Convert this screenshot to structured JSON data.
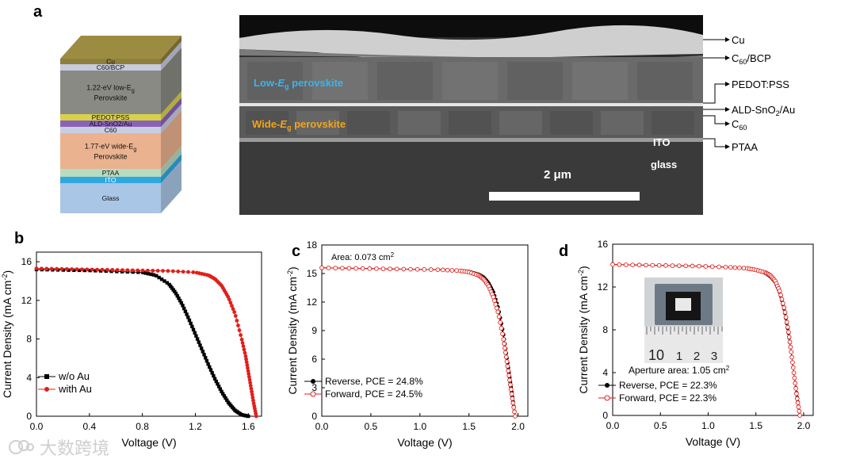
{
  "panels": {
    "a": "a",
    "b": "b",
    "c": "c",
    "d": "d"
  },
  "device_stack": {
    "layers": [
      {
        "label": "Cu",
        "color": "#8e7f3c"
      },
      {
        "label": "C60/BCP",
        "color": "#c7cbe0"
      },
      {
        "label": "1.22-eV low-Eg Perovskite",
        "line1": "1.22-eV low-E",
        "line1_sub": "g",
        "line2": "Perovskite",
        "color": "#8a8a84"
      },
      {
        "label": "PEDOT:PSS",
        "color": "#d8d24a"
      },
      {
        "label": "ALD-SnO2/Au",
        "color": "#8a63b8"
      },
      {
        "label": "C60",
        "color": "#c9cde2"
      },
      {
        "label": "1.77-eV wide-Eg Perovskite",
        "line1": "1.77-eV wide-E",
        "line1_sub": "g",
        "line2": "Perovskite",
        "color": "#eab28f"
      },
      {
        "label": "PTAA",
        "color": "#b7dcc0"
      },
      {
        "label": "ITO",
        "color": "#2fa8e0"
      },
      {
        "label": "Glass",
        "color": "#a9c6e6"
      }
    ]
  },
  "sem": {
    "low_label": "Low-Eg perovskite",
    "wide_label": "Wide-Eg perovskite",
    "ito_label": "ITO",
    "glass_label": "glass",
    "scale_label": "2 μm",
    "callouts": [
      "Cu",
      "C60/BCP",
      "PEDOT:PSS",
      "ALD-SnO2/Au",
      "C60",
      "PTAA"
    ]
  },
  "chart_data": [
    {
      "type": "line",
      "panel": "b",
      "xlabel": "Voltage (V)",
      "ylabel": "Current Density (mA cm-2)",
      "xlim": [
        0,
        1.7
      ],
      "ylim": [
        0,
        17
      ],
      "xticks": [
        "0.0",
        "0.4",
        "0.8",
        "1.2",
        "1.6"
      ],
      "yticks": [
        "0",
        "4",
        "8",
        "12",
        "16"
      ],
      "legend_position": "bottom-left",
      "series": [
        {
          "name": "w/o  Au",
          "color": "#000000",
          "marker": "square",
          "x": [
            0.0,
            0.2,
            0.4,
            0.6,
            0.8,
            0.9,
            1.0,
            1.05,
            1.1,
            1.15,
            1.2,
            1.25,
            1.3,
            1.35,
            1.4,
            1.45,
            1.5,
            1.55,
            1.6
          ],
          "y": [
            15.2,
            15.15,
            15.1,
            15.0,
            14.9,
            14.6,
            13.7,
            12.8,
            11.6,
            10.1,
            8.5,
            6.9,
            5.3,
            3.8,
            2.5,
            1.4,
            0.6,
            0.15,
            0.0
          ]
        },
        {
          "name": "with Au",
          "color": "#e0201b",
          "marker": "circle",
          "x": [
            0.0,
            0.2,
            0.4,
            0.6,
            0.8,
            1.0,
            1.2,
            1.3,
            1.35,
            1.4,
            1.45,
            1.5,
            1.55,
            1.58,
            1.6,
            1.62,
            1.64,
            1.66
          ],
          "y": [
            15.3,
            15.25,
            15.2,
            15.15,
            15.1,
            15.05,
            14.9,
            14.6,
            14.2,
            13.5,
            12.3,
            10.6,
            8.0,
            6.2,
            4.6,
            3.0,
            1.4,
            0.0
          ]
        }
      ]
    },
    {
      "type": "line",
      "panel": "c",
      "annotation": "Area: 0.073 cm2",
      "xlabel": "Voltage (V)",
      "ylabel": "Current Density (mA cm-2)",
      "xlim": [
        0,
        2.1
      ],
      "ylim": [
        0,
        18
      ],
      "xticks": [
        "0.0",
        "0.5",
        "1.0",
        "1.5",
        "2.0"
      ],
      "yticks": [
        "0",
        "3",
        "6",
        "9",
        "12",
        "15",
        "18"
      ],
      "legend_position": "bottom-left",
      "series": [
        {
          "name": "Reverse, PCE = 24.8%",
          "color": "#000000",
          "marker": "filled-circle",
          "x": [
            0.0,
            0.3,
            0.6,
            0.9,
            1.2,
            1.4,
            1.5,
            1.6,
            1.65,
            1.7,
            1.75,
            1.8,
            1.85,
            1.88,
            1.91,
            1.94,
            1.97
          ],
          "y": [
            15.6,
            15.55,
            15.5,
            15.45,
            15.4,
            15.3,
            15.2,
            14.9,
            14.6,
            14.0,
            13.0,
            11.3,
            8.7,
            6.6,
            4.4,
            2.2,
            0.0
          ]
        },
        {
          "name": "Forward, PCE = 24.5%",
          "color": "#e0201b",
          "marker": "open-circle",
          "x": [
            0.0,
            0.3,
            0.6,
            0.9,
            1.2,
            1.4,
            1.5,
            1.6,
            1.65,
            1.7,
            1.75,
            1.8,
            1.85,
            1.88,
            1.91,
            1.94,
            1.97
          ],
          "y": [
            15.6,
            15.55,
            15.5,
            15.45,
            15.4,
            15.3,
            15.15,
            14.8,
            14.4,
            13.7,
            12.5,
            10.8,
            8.2,
            6.2,
            4.1,
            2.0,
            0.0
          ]
        }
      ]
    },
    {
      "type": "line",
      "panel": "d",
      "annotation": "Aperture area: 1.05 cm2",
      "inset_ruler_labels": [
        "10",
        "1",
        "2",
        "3"
      ],
      "xlabel": "Voltage (V)",
      "ylabel": "Current Density (mA cm-2)",
      "xlim": [
        0,
        2.1
      ],
      "ylim": [
        0,
        16
      ],
      "xticks": [
        "0.0",
        "0.5",
        "1.0",
        "1.5",
        "2.0"
      ],
      "yticks": [
        "0",
        "4",
        "8",
        "12",
        "16"
      ],
      "legend_position": "bottom-left",
      "series": [
        {
          "name": "Reverse, PCE = 22.3%",
          "color": "#000000",
          "marker": "filled-circle",
          "x": [
            0.0,
            0.3,
            0.6,
            0.9,
            1.2,
            1.4,
            1.5,
            1.6,
            1.65,
            1.7,
            1.75,
            1.8,
            1.84,
            1.87,
            1.9,
            1.93,
            1.96
          ],
          "y": [
            14.1,
            14.05,
            14.0,
            13.95,
            13.85,
            13.75,
            13.6,
            13.3,
            13.0,
            12.5,
            11.5,
            9.8,
            7.8,
            5.9,
            3.8,
            1.8,
            0.0
          ]
        },
        {
          "name": "Forward, PCE = 22.3%",
          "color": "#e0201b",
          "marker": "open-circle",
          "x": [
            0.0,
            0.3,
            0.6,
            0.9,
            1.2,
            1.4,
            1.5,
            1.6,
            1.65,
            1.7,
            1.75,
            1.8,
            1.84,
            1.87,
            1.9,
            1.93,
            1.96
          ],
          "y": [
            14.1,
            14.05,
            14.0,
            13.95,
            13.85,
            13.75,
            13.6,
            13.35,
            13.1,
            12.6,
            11.6,
            9.9,
            7.9,
            5.9,
            3.8,
            1.7,
            0.0
          ]
        }
      ]
    }
  ],
  "watermark": "大数跨境",
  "watermark_icon": "brand-logo-icon"
}
